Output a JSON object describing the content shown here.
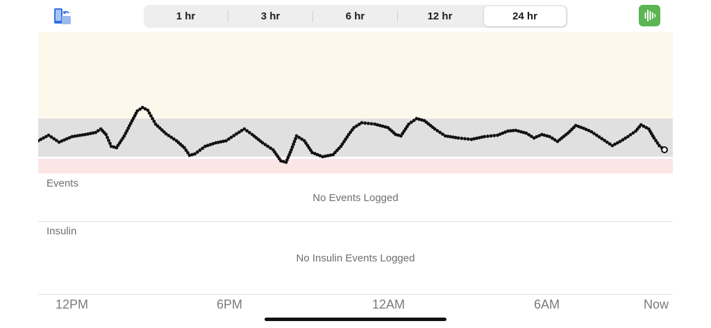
{
  "range_tabs": [
    "1 hr",
    "3 hr",
    "6 hr",
    "12 hr",
    "24 hr"
  ],
  "selected_range": "24 hr",
  "events": {
    "label": "Events",
    "empty": "No Events Logged"
  },
  "insulin": {
    "label": "Insulin",
    "empty": "No Insulin Events Logged"
  },
  "icons": {
    "left": "phone-sync-icon",
    "right": "waveform-icon"
  },
  "colors": {
    "high_zone": "#fcf8eb",
    "target_zone": "#e0e0e0",
    "low_zone": "#fbe5e5",
    "line": "#111111",
    "accent": "#5ab552"
  },
  "chart_data": {
    "type": "scatter",
    "x_tick_labels": [
      "12PM",
      "6PM",
      "12AM",
      "6AM",
      "Now"
    ],
    "x_ticks_hours_from_start": [
      1,
      7,
      13,
      19,
      24
    ],
    "x_range_hours": [
      0,
      24
    ],
    "zones": {
      "high_band": [
        0,
        125
      ],
      "target_band": [
        125,
        180
      ],
      "low_band": [
        183,
        204
      ]
    },
    "glucose_trace": [
      [
        0.0,
        157
      ],
      [
        0.4,
        149
      ],
      [
        0.8,
        159
      ],
      [
        1.3,
        151
      ],
      [
        1.8,
        148
      ],
      [
        2.2,
        145
      ],
      [
        2.4,
        140
      ],
      [
        2.6,
        148
      ],
      [
        2.8,
        165
      ],
      [
        3.0,
        167
      ],
      [
        3.3,
        150
      ],
      [
        3.6,
        128
      ],
      [
        3.8,
        114
      ],
      [
        4.0,
        109
      ],
      [
        4.2,
        113
      ],
      [
        4.5,
        133
      ],
      [
        4.9,
        147
      ],
      [
        5.3,
        157
      ],
      [
        5.6,
        167
      ],
      [
        5.8,
        178
      ],
      [
        6.0,
        176
      ],
      [
        6.4,
        165
      ],
      [
        6.8,
        160
      ],
      [
        7.2,
        157
      ],
      [
        7.6,
        147
      ],
      [
        7.9,
        140
      ],
      [
        8.2,
        148
      ],
      [
        8.6,
        160
      ],
      [
        9.0,
        170
      ],
      [
        9.3,
        186
      ],
      [
        9.5,
        188
      ],
      [
        9.7,
        170
      ],
      [
        9.9,
        150
      ],
      [
        10.2,
        157
      ],
      [
        10.5,
        174
      ],
      [
        10.9,
        180
      ],
      [
        11.3,
        177
      ],
      [
        11.6,
        165
      ],
      [
        11.9,
        148
      ],
      [
        12.1,
        138
      ],
      [
        12.4,
        131
      ],
      [
        12.9,
        133
      ],
      [
        13.4,
        138
      ],
      [
        13.7,
        148
      ],
      [
        13.9,
        150
      ],
      [
        14.2,
        133
      ],
      [
        14.5,
        125
      ],
      [
        14.8,
        128
      ],
      [
        15.2,
        140
      ],
      [
        15.6,
        150
      ],
      [
        16.1,
        153
      ],
      [
        16.6,
        155
      ],
      [
        17.1,
        151
      ],
      [
        17.6,
        149
      ],
      [
        18.0,
        143
      ],
      [
        18.3,
        142
      ],
      [
        18.7,
        146
      ],
      [
        19.0,
        153
      ],
      [
        19.3,
        148
      ],
      [
        19.6,
        151
      ],
      [
        19.9,
        158
      ],
      [
        20.3,
        146
      ],
      [
        20.6,
        135
      ],
      [
        20.9,
        139
      ],
      [
        21.2,
        144
      ],
      [
        21.6,
        154
      ],
      [
        22.0,
        164
      ],
      [
        22.3,
        158
      ],
      [
        22.6,
        151
      ],
      [
        22.9,
        143
      ],
      [
        23.1,
        134
      ],
      [
        23.4,
        140
      ],
      [
        23.6,
        153
      ],
      [
        23.8,
        164
      ],
      [
        24.0,
        170
      ]
    ],
    "current_marker_hours": 24.0
  }
}
